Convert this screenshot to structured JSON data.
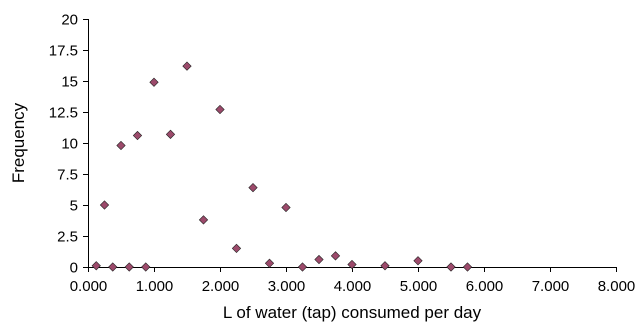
{
  "chart_data": {
    "type": "scatter",
    "xlabel": "L of water (tap) consumed per day",
    "ylabel": "Frequency",
    "xlim": [
      0,
      8
    ],
    "ylim": [
      0,
      20
    ],
    "x_ticks": [
      "0.000",
      "1.000",
      "2.000",
      "3.000",
      "4.000",
      "5.000",
      "6.000",
      "7.000",
      "8.000"
    ],
    "x_tick_values": [
      0,
      1,
      2,
      3,
      4,
      5,
      6,
      7,
      8
    ],
    "y_ticks": [
      "0",
      "2.5",
      "5",
      "7.5",
      "10",
      "12.5",
      "15",
      "17.5",
      "20"
    ],
    "y_tick_values": [
      0,
      2.5,
      5,
      7.5,
      10,
      12.5,
      15,
      17.5,
      20
    ],
    "grid": false,
    "legend": "none",
    "marker": "diamond",
    "marker_color": "#9C4A6B",
    "points": [
      {
        "x": 0.125,
        "y": 0.1
      },
      {
        "x": 0.25,
        "y": 5.0
      },
      {
        "x": 0.375,
        "y": 0.0
      },
      {
        "x": 0.5,
        "y": 9.8
      },
      {
        "x": 0.625,
        "y": 0.0
      },
      {
        "x": 0.75,
        "y": 10.6
      },
      {
        "x": 0.875,
        "y": 0.0
      },
      {
        "x": 1.0,
        "y": 14.9
      },
      {
        "x": 1.25,
        "y": 10.7
      },
      {
        "x": 1.5,
        "y": 16.2
      },
      {
        "x": 1.75,
        "y": 3.8
      },
      {
        "x": 2.0,
        "y": 12.7
      },
      {
        "x": 2.25,
        "y": 1.5
      },
      {
        "x": 2.5,
        "y": 6.4
      },
      {
        "x": 2.75,
        "y": 0.3
      },
      {
        "x": 3.0,
        "y": 4.8
      },
      {
        "x": 3.25,
        "y": 0.0
      },
      {
        "x": 3.5,
        "y": 0.6
      },
      {
        "x": 3.75,
        "y": 0.9
      },
      {
        "x": 4.0,
        "y": 0.2
      },
      {
        "x": 4.5,
        "y": 0.1
      },
      {
        "x": 5.0,
        "y": 0.5
      },
      {
        "x": 5.5,
        "y": 0.0
      },
      {
        "x": 5.75,
        "y": 0.0
      }
    ]
  }
}
